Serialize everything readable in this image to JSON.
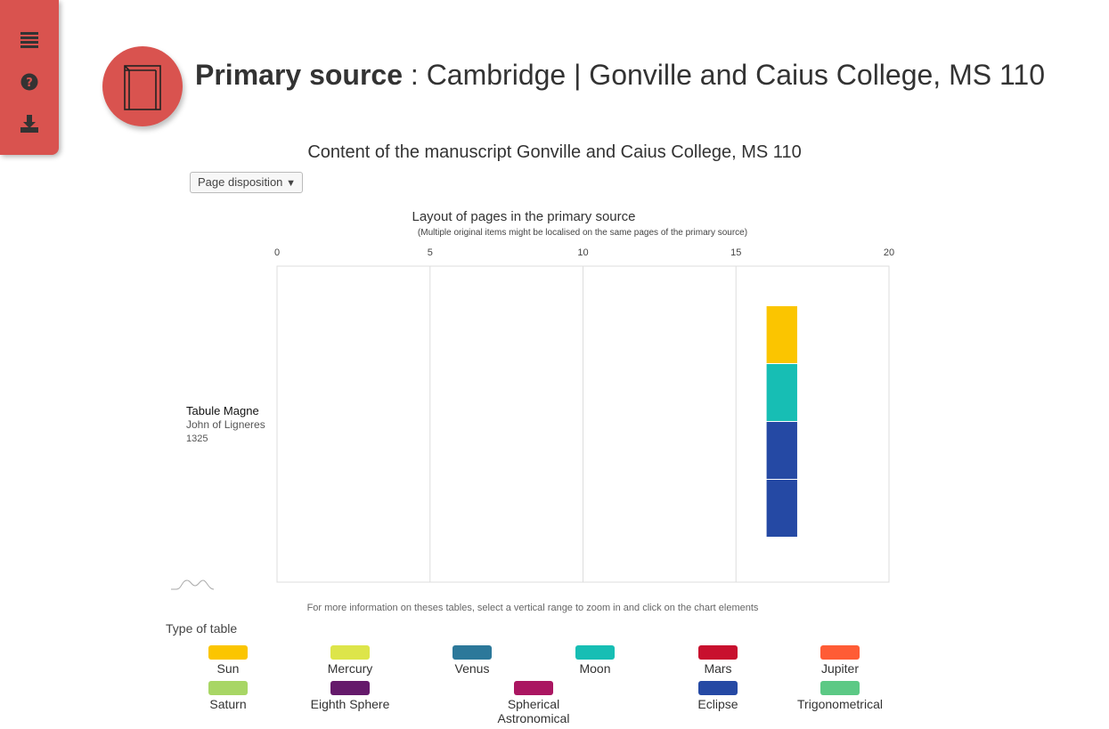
{
  "sidebar": {
    "items": [
      {
        "icon": "list-icon"
      },
      {
        "icon": "help-icon"
      },
      {
        "icon": "download-icon"
      }
    ],
    "accent": "#d9534f"
  },
  "header": {
    "kind": "Primary source",
    "separator": " : ",
    "title": "Cambridge | Gonville and Caius College, MS 110",
    "icon": "book-icon"
  },
  "content_title": "Content of the manuscript Gonville and Caius College, MS 110",
  "dropdown": {
    "selected": "Page disposition"
  },
  "hint": "For more information on theses tables, select a vertical range to zoom in and click on the chart elements",
  "chart_data": {
    "type": "bar",
    "title": "Layout of pages in the primary source",
    "subtitle": "(Multiple original items might be localised on the same pages of the primary source)",
    "xlim": [
      0,
      20
    ],
    "xticks": [
      "0",
      "5",
      "10",
      "15",
      "20"
    ],
    "grid": true,
    "rows": [
      {
        "title": "Tabule Magne",
        "author": "John of Ligneres",
        "date": "1325"
      }
    ],
    "segments": [
      {
        "x_start": 16,
        "x_end": 17,
        "type": "Sun",
        "color": "#fbc500"
      },
      {
        "x_start": 16,
        "x_end": 17,
        "type": "Moon",
        "color": "#17beb4"
      },
      {
        "x_start": 16,
        "x_end": 17,
        "type": "Eclipse",
        "color": "#2549a4"
      },
      {
        "x_start": 16,
        "x_end": 17,
        "type": "Eclipse",
        "color": "#2549a4"
      }
    ]
  },
  "legend": {
    "title": "Type of table",
    "items": [
      {
        "label": "Sun",
        "color": "#fbc500"
      },
      {
        "label": "Mercury",
        "color": "#dde54a"
      },
      {
        "label": "Venus",
        "color": "#2c789a"
      },
      {
        "label": "Moon",
        "color": "#17beb4"
      },
      {
        "label": "Mars",
        "color": "#c8102e"
      },
      {
        "label": "Jupiter",
        "color": "#ff5c35"
      },
      {
        "label": "Saturn",
        "color": "#a8d665"
      },
      {
        "label": "Eighth Sphere",
        "color": "#651a6b"
      },
      {
        "label": "Spherical Astronomical",
        "color": "#aa1661"
      },
      {
        "label": "Eclipse",
        "color": "#2549a4"
      },
      {
        "label": "Trigonometrical",
        "color": "#5cc985"
      }
    ]
  }
}
